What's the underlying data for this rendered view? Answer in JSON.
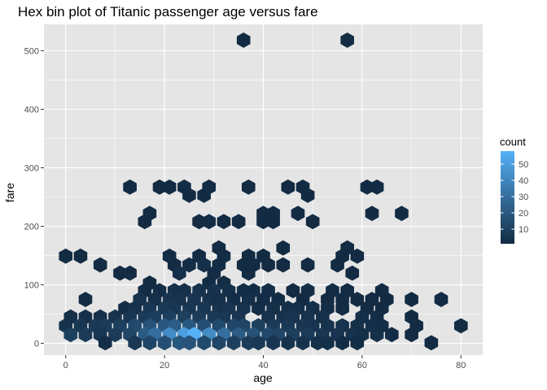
{
  "chart_data": {
    "type": "hexbin",
    "title": "Hex bin plot of Titanic passenger age versus fare",
    "xlabel": "age",
    "ylabel": "fare",
    "xlim": [
      -4.4,
      84.4
    ],
    "ylim": [
      -20,
      545
    ],
    "x_ticks": [
      0,
      20,
      40,
      60,
      80
    ],
    "y_ticks": [
      0,
      100,
      200,
      300,
      400,
      500
    ],
    "grid": true,
    "panel_background": "#e5e5e5",
    "grid_color": "#ffffff",
    "legend": {
      "title": "count",
      "position": "right",
      "breaks": [
        10,
        20,
        30,
        40,
        50
      ],
      "min": 1,
      "max": 58,
      "low_color": "#132b43",
      "high_color": "#56b1f7"
    },
    "hexes": [
      {
        "x": 36,
        "y": 518,
        "count": 1
      },
      {
        "x": 57,
        "y": 518,
        "count": 1
      },
      {
        "x": 13,
        "y": 267,
        "count": 1
      },
      {
        "x": 19,
        "y": 267,
        "count": 1
      },
      {
        "x": 21,
        "y": 267,
        "count": 1
      },
      {
        "x": 24,
        "y": 267,
        "count": 2
      },
      {
        "x": 29,
        "y": 267,
        "count": 1
      },
      {
        "x": 37,
        "y": 267,
        "count": 1
      },
      {
        "x": 45,
        "y": 267,
        "count": 1
      },
      {
        "x": 48,
        "y": 267,
        "count": 1
      },
      {
        "x": 61,
        "y": 267,
        "count": 1
      },
      {
        "x": 63,
        "y": 267,
        "count": 1
      },
      {
        "x": 25,
        "y": 253,
        "count": 1
      },
      {
        "x": 28,
        "y": 253,
        "count": 1
      },
      {
        "x": 49,
        "y": 253,
        "count": 1
      },
      {
        "x": 17,
        "y": 222,
        "count": 1
      },
      {
        "x": 40,
        "y": 222,
        "count": 1
      },
      {
        "x": 42,
        "y": 222,
        "count": 1
      },
      {
        "x": 47,
        "y": 222,
        "count": 1
      },
      {
        "x": 62,
        "y": 222,
        "count": 1
      },
      {
        "x": 68,
        "y": 222,
        "count": 1
      },
      {
        "x": 16,
        "y": 208,
        "count": 1
      },
      {
        "x": 27,
        "y": 208,
        "count": 1
      },
      {
        "x": 29,
        "y": 208,
        "count": 2
      },
      {
        "x": 32,
        "y": 208,
        "count": 1
      },
      {
        "x": 35,
        "y": 208,
        "count": 1
      },
      {
        "x": 40,
        "y": 208,
        "count": 1
      },
      {
        "x": 42,
        "y": 208,
        "count": 1
      },
      {
        "x": 50,
        "y": 208,
        "count": 1
      },
      {
        "x": 31,
        "y": 163,
        "count": 1
      },
      {
        "x": 44,
        "y": 163,
        "count": 1
      },
      {
        "x": 57,
        "y": 163,
        "count": 1
      },
      {
        "x": 0,
        "y": 149,
        "count": 1
      },
      {
        "x": 3,
        "y": 149,
        "count": 1
      },
      {
        "x": 21,
        "y": 149,
        "count": 2
      },
      {
        "x": 27,
        "y": 149,
        "count": 1
      },
      {
        "x": 32,
        "y": 149,
        "count": 2
      },
      {
        "x": 37,
        "y": 149,
        "count": 1
      },
      {
        "x": 40,
        "y": 149,
        "count": 1
      },
      {
        "x": 56,
        "y": 149,
        "count": 1
      },
      {
        "x": 59,
        "y": 149,
        "count": 1
      },
      {
        "x": 7,
        "y": 134,
        "count": 1
      },
      {
        "x": 22,
        "y": 134,
        "count": 1
      },
      {
        "x": 25,
        "y": 134,
        "count": 2
      },
      {
        "x": 28,
        "y": 134,
        "count": 3
      },
      {
        "x": 31,
        "y": 134,
        "count": 2
      },
      {
        "x": 36,
        "y": 134,
        "count": 1
      },
      {
        "x": 38,
        "y": 134,
        "count": 2
      },
      {
        "x": 41,
        "y": 134,
        "count": 1
      },
      {
        "x": 44,
        "y": 134,
        "count": 1
      },
      {
        "x": 49,
        "y": 134,
        "count": 1
      },
      {
        "x": 55,
        "y": 134,
        "count": 1
      },
      {
        "x": 11,
        "y": 120,
        "count": 1
      },
      {
        "x": 13,
        "y": 120,
        "count": 1
      },
      {
        "x": 23,
        "y": 120,
        "count": 3
      },
      {
        "x": 30,
        "y": 120,
        "count": 2
      },
      {
        "x": 37,
        "y": 120,
        "count": 1
      },
      {
        "x": 58,
        "y": 120,
        "count": 1
      },
      {
        "x": 17,
        "y": 103,
        "count": 1
      },
      {
        "x": 29,
        "y": 103,
        "count": 2
      },
      {
        "x": 32,
        "y": 103,
        "count": 1
      },
      {
        "x": 16,
        "y": 90,
        "count": 2
      },
      {
        "x": 19,
        "y": 90,
        "count": 2
      },
      {
        "x": 22,
        "y": 90,
        "count": 3
      },
      {
        "x": 24,
        "y": 90,
        "count": 3
      },
      {
        "x": 27,
        "y": 90,
        "count": 4
      },
      {
        "x": 30,
        "y": 90,
        "count": 4
      },
      {
        "x": 33,
        "y": 90,
        "count": 3
      },
      {
        "x": 36,
        "y": 90,
        "count": 2
      },
      {
        "x": 38,
        "y": 90,
        "count": 2
      },
      {
        "x": 41,
        "y": 90,
        "count": 2
      },
      {
        "x": 46,
        "y": 90,
        "count": 1
      },
      {
        "x": 49,
        "y": 90,
        "count": 2
      },
      {
        "x": 54,
        "y": 90,
        "count": 2
      },
      {
        "x": 57,
        "y": 90,
        "count": 1
      },
      {
        "x": 64,
        "y": 90,
        "count": 1
      },
      {
        "x": 4,
        "y": 75,
        "count": 1
      },
      {
        "x": 15,
        "y": 75,
        "count": 4
      },
      {
        "x": 18,
        "y": 75,
        "count": 3
      },
      {
        "x": 21,
        "y": 75,
        "count": 5
      },
      {
        "x": 23,
        "y": 75,
        "count": 4
      },
      {
        "x": 26,
        "y": 75,
        "count": 5
      },
      {
        "x": 29,
        "y": 75,
        "count": 4
      },
      {
        "x": 31,
        "y": 75,
        "count": 3
      },
      {
        "x": 34,
        "y": 75,
        "count": 2
      },
      {
        "x": 37,
        "y": 75,
        "count": 3
      },
      {
        "x": 40,
        "y": 75,
        "count": 2
      },
      {
        "x": 43,
        "y": 75,
        "count": 2
      },
      {
        "x": 48,
        "y": 75,
        "count": 1
      },
      {
        "x": 53,
        "y": 75,
        "count": 1
      },
      {
        "x": 56,
        "y": 75,
        "count": 2
      },
      {
        "x": 59,
        "y": 75,
        "count": 1
      },
      {
        "x": 62,
        "y": 75,
        "count": 1
      },
      {
        "x": 65,
        "y": 75,
        "count": 1
      },
      {
        "x": 70,
        "y": 75,
        "count": 1
      },
      {
        "x": 76,
        "y": 75,
        "count": 1
      },
      {
        "x": 12,
        "y": 60,
        "count": 2
      },
      {
        "x": 14,
        "y": 60,
        "count": 4
      },
      {
        "x": 17,
        "y": 60,
        "count": 6
      },
      {
        "x": 20,
        "y": 60,
        "count": 7
      },
      {
        "x": 22,
        "y": 60,
        "count": 6
      },
      {
        "x": 25,
        "y": 60,
        "count": 6
      },
      {
        "x": 28,
        "y": 60,
        "count": 6
      },
      {
        "x": 31,
        "y": 60,
        "count": 4
      },
      {
        "x": 33,
        "y": 60,
        "count": 5
      },
      {
        "x": 36,
        "y": 60,
        "count": 4
      },
      {
        "x": 39,
        "y": 60,
        "count": 2
      },
      {
        "x": 42,
        "y": 60,
        "count": 3
      },
      {
        "x": 45,
        "y": 60,
        "count": 3
      },
      {
        "x": 47,
        "y": 60,
        "count": 3
      },
      {
        "x": 50,
        "y": 60,
        "count": 3
      },
      {
        "x": 53,
        "y": 60,
        "count": 2
      },
      {
        "x": 56,
        "y": 60,
        "count": 2
      },
      {
        "x": 61,
        "y": 60,
        "count": 1
      },
      {
        "x": 64,
        "y": 60,
        "count": 1
      },
      {
        "x": 1,
        "y": 45,
        "count": 3
      },
      {
        "x": 4,
        "y": 45,
        "count": 3
      },
      {
        "x": 7,
        "y": 45,
        "count": 3
      },
      {
        "x": 10,
        "y": 45,
        "count": 4
      },
      {
        "x": 13,
        "y": 45,
        "count": 6
      },
      {
        "x": 16,
        "y": 45,
        "count": 8
      },
      {
        "x": 18,
        "y": 45,
        "count": 9
      },
      {
        "x": 21,
        "y": 45,
        "count": 10
      },
      {
        "x": 24,
        "y": 45,
        "count": 10
      },
      {
        "x": 27,
        "y": 45,
        "count": 8
      },
      {
        "x": 30,
        "y": 45,
        "count": 7
      },
      {
        "x": 32,
        "y": 45,
        "count": 6
      },
      {
        "x": 35,
        "y": 45,
        "count": 5
      },
      {
        "x": 41,
        "y": 45,
        "count": 4
      },
      {
        "x": 44,
        "y": 45,
        "count": 4
      },
      {
        "x": 46,
        "y": 45,
        "count": 5
      },
      {
        "x": 49,
        "y": 45,
        "count": 4
      },
      {
        "x": 52,
        "y": 45,
        "count": 3
      },
      {
        "x": 60,
        "y": 45,
        "count": 3
      },
      {
        "x": 63,
        "y": 45,
        "count": 2
      },
      {
        "x": 70,
        "y": 45,
        "count": 1
      },
      {
        "x": 0,
        "y": 30,
        "count": 4
      },
      {
        "x": 3,
        "y": 30,
        "count": 6
      },
      {
        "x": 6,
        "y": 30,
        "count": 7
      },
      {
        "x": 8,
        "y": 30,
        "count": 8
      },
      {
        "x": 11,
        "y": 30,
        "count": 10
      },
      {
        "x": 14,
        "y": 30,
        "count": 14
      },
      {
        "x": 17,
        "y": 30,
        "count": 18
      },
      {
        "x": 20,
        "y": 30,
        "count": 20
      },
      {
        "x": 22,
        "y": 30,
        "count": 22
      },
      {
        "x": 25,
        "y": 30,
        "count": 20
      },
      {
        "x": 28,
        "y": 30,
        "count": 16
      },
      {
        "x": 31,
        "y": 30,
        "count": 14
      },
      {
        "x": 34,
        "y": 30,
        "count": 12
      },
      {
        "x": 36,
        "y": 30,
        "count": 12
      },
      {
        "x": 39,
        "y": 30,
        "count": 10
      },
      {
        "x": 42,
        "y": 30,
        "count": 8
      },
      {
        "x": 45,
        "y": 30,
        "count": 7
      },
      {
        "x": 48,
        "y": 30,
        "count": 6
      },
      {
        "x": 50,
        "y": 30,
        "count": 5
      },
      {
        "x": 53,
        "y": 30,
        "count": 4
      },
      {
        "x": 56,
        "y": 30,
        "count": 4
      },
      {
        "x": 59,
        "y": 30,
        "count": 3
      },
      {
        "x": 62,
        "y": 30,
        "count": 3
      },
      {
        "x": 64,
        "y": 30,
        "count": 2
      },
      {
        "x": 71,
        "y": 30,
        "count": 1
      },
      {
        "x": 80,
        "y": 30,
        "count": 1
      },
      {
        "x": 1,
        "y": 15,
        "count": 10
      },
      {
        "x": 4,
        "y": 15,
        "count": 8
      },
      {
        "x": 7,
        "y": 15,
        "count": 6
      },
      {
        "x": 10,
        "y": 15,
        "count": 8
      },
      {
        "x": 13,
        "y": 15,
        "count": 12
      },
      {
        "x": 16,
        "y": 15,
        "count": 22
      },
      {
        "x": 18,
        "y": 15,
        "count": 30
      },
      {
        "x": 21,
        "y": 15,
        "count": 42
      },
      {
        "x": 24,
        "y": 15,
        "count": 50
      },
      {
        "x": 26,
        "y": 15,
        "count": 58
      },
      {
        "x": 29,
        "y": 15,
        "count": 42
      },
      {
        "x": 32,
        "y": 15,
        "count": 30
      },
      {
        "x": 35,
        "y": 15,
        "count": 22
      },
      {
        "x": 38,
        "y": 15,
        "count": 18
      },
      {
        "x": 41,
        "y": 15,
        "count": 14
      },
      {
        "x": 43,
        "y": 15,
        "count": 12
      },
      {
        "x": 46,
        "y": 15,
        "count": 10
      },
      {
        "x": 49,
        "y": 15,
        "count": 8
      },
      {
        "x": 52,
        "y": 15,
        "count": 6
      },
      {
        "x": 55,
        "y": 15,
        "count": 5
      },
      {
        "x": 58,
        "y": 15,
        "count": 4
      },
      {
        "x": 60,
        "y": 15,
        "count": 3
      },
      {
        "x": 63,
        "y": 15,
        "count": 3
      },
      {
        "x": 66,
        "y": 15,
        "count": 2
      },
      {
        "x": 70,
        "y": 15,
        "count": 1
      },
      {
        "x": 8,
        "y": 1,
        "count": 2
      },
      {
        "x": 14,
        "y": 1,
        "count": 6
      },
      {
        "x": 17,
        "y": 1,
        "count": 12
      },
      {
        "x": 20,
        "y": 1,
        "count": 16
      },
      {
        "x": 23,
        "y": 1,
        "count": 20
      },
      {
        "x": 25,
        "y": 1,
        "count": 18
      },
      {
        "x": 28,
        "y": 1,
        "count": 14
      },
      {
        "x": 31,
        "y": 1,
        "count": 12
      },
      {
        "x": 34,
        "y": 1,
        "count": 10
      },
      {
        "x": 37,
        "y": 1,
        "count": 8
      },
      {
        "x": 39,
        "y": 1,
        "count": 7
      },
      {
        "x": 42,
        "y": 1,
        "count": 5
      },
      {
        "x": 45,
        "y": 1,
        "count": 4
      },
      {
        "x": 48,
        "y": 1,
        "count": 4
      },
      {
        "x": 51,
        "y": 1,
        "count": 3
      },
      {
        "x": 53,
        "y": 1,
        "count": 3
      },
      {
        "x": 56,
        "y": 1,
        "count": 2
      },
      {
        "x": 59,
        "y": 1,
        "count": 2
      },
      {
        "x": 74,
        "y": 1,
        "count": 1
      }
    ]
  }
}
